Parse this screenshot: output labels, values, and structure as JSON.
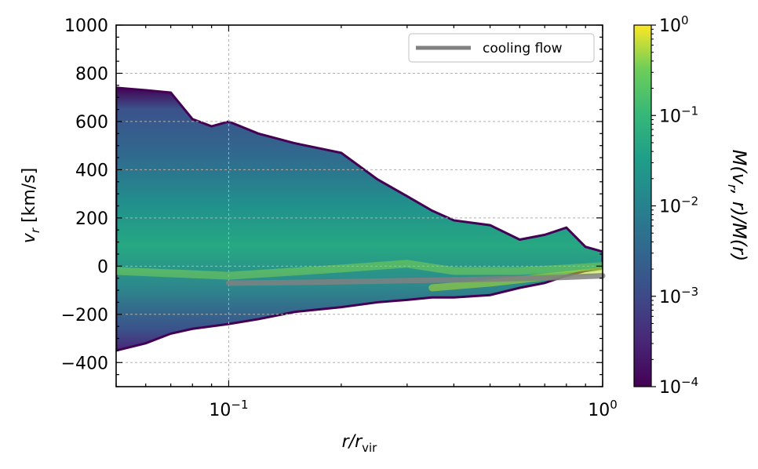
{
  "chart_data": {
    "type": "heatmap",
    "x_scale": "log",
    "xlim": [
      0.05,
      1.0
    ],
    "ylim": [
      -500,
      1000
    ],
    "xlabel": "r/r_vir",
    "ylabel": "v_r [km/s]",
    "xticks": [
      {
        "value": 0.1,
        "base": "10",
        "exp": "−1"
      },
      {
        "value": 1.0,
        "base": "10",
        "exp": "0"
      }
    ],
    "yticks": [
      {
        "value": 1000,
        "label": "1000"
      },
      {
        "value": 800,
        "label": "800"
      },
      {
        "value": 600,
        "label": "600"
      },
      {
        "value": 400,
        "label": "400"
      },
      {
        "value": 200,
        "label": "200"
      },
      {
        "value": 0,
        "label": "0"
      },
      {
        "value": -200,
        "label": "−200"
      },
      {
        "value": -400,
        "label": "−400"
      }
    ],
    "grid": true,
    "legend": {
      "placement": "top-right",
      "entries": [
        {
          "label": "cooling flow",
          "color": "#808080"
        }
      ]
    },
    "colorbar": {
      "label_parts": [
        "M(v",
        "r",
        ", r)/M(r)"
      ],
      "scale": "log",
      "range": [
        0.0001,
        1
      ],
      "ticks": [
        {
          "value": 1,
          "base": "10",
          "exp": "0"
        },
        {
          "value": 0.1,
          "base": "10",
          "exp": "−1"
        },
        {
          "value": 0.01,
          "base": "10",
          "exp": "−2"
        },
        {
          "value": 0.001,
          "base": "10",
          "exp": "−3"
        },
        {
          "value": 0.0001,
          "base": "10",
          "exp": "−4"
        }
      ],
      "colormap": "viridis"
    },
    "envelope": {
      "upper": [
        [
          0.05,
          740
        ],
        [
          0.06,
          730
        ],
        [
          0.07,
          720
        ],
        [
          0.08,
          610
        ],
        [
          0.09,
          580
        ],
        [
          0.1,
          600
        ],
        [
          0.12,
          550
        ],
        [
          0.15,
          510
        ],
        [
          0.2,
          470
        ],
        [
          0.25,
          360
        ],
        [
          0.3,
          290
        ],
        [
          0.35,
          230
        ],
        [
          0.4,
          190
        ],
        [
          0.5,
          170
        ],
        [
          0.6,
          110
        ],
        [
          0.7,
          130
        ],
        [
          0.8,
          160
        ],
        [
          0.9,
          80
        ],
        [
          1.0,
          60
        ]
      ],
      "lower": [
        [
          0.05,
          -350
        ],
        [
          0.06,
          -320
        ],
        [
          0.07,
          -280
        ],
        [
          0.08,
          -260
        ],
        [
          0.1,
          -240
        ],
        [
          0.12,
          -220
        ],
        [
          0.15,
          -190
        ],
        [
          0.2,
          -170
        ],
        [
          0.25,
          -150
        ],
        [
          0.3,
          -140
        ],
        [
          0.35,
          -130
        ],
        [
          0.4,
          -130
        ],
        [
          0.5,
          -120
        ],
        [
          0.6,
          -90
        ],
        [
          0.7,
          -70
        ],
        [
          0.8,
          -40
        ],
        [
          0.9,
          -20
        ],
        [
          1.0,
          -10
        ]
      ]
    },
    "series": [
      {
        "name": "cooling flow",
        "color": "#808080",
        "x": [
          0.1,
          0.15,
          0.2,
          0.3,
          0.4,
          0.5,
          0.6,
          0.7,
          0.8,
          0.9,
          1.0
        ],
        "y": [
          -70,
          -68,
          -65,
          -60,
          -57,
          -54,
          -51,
          -49,
          -46,
          -43,
          -40
        ]
      }
    ]
  }
}
